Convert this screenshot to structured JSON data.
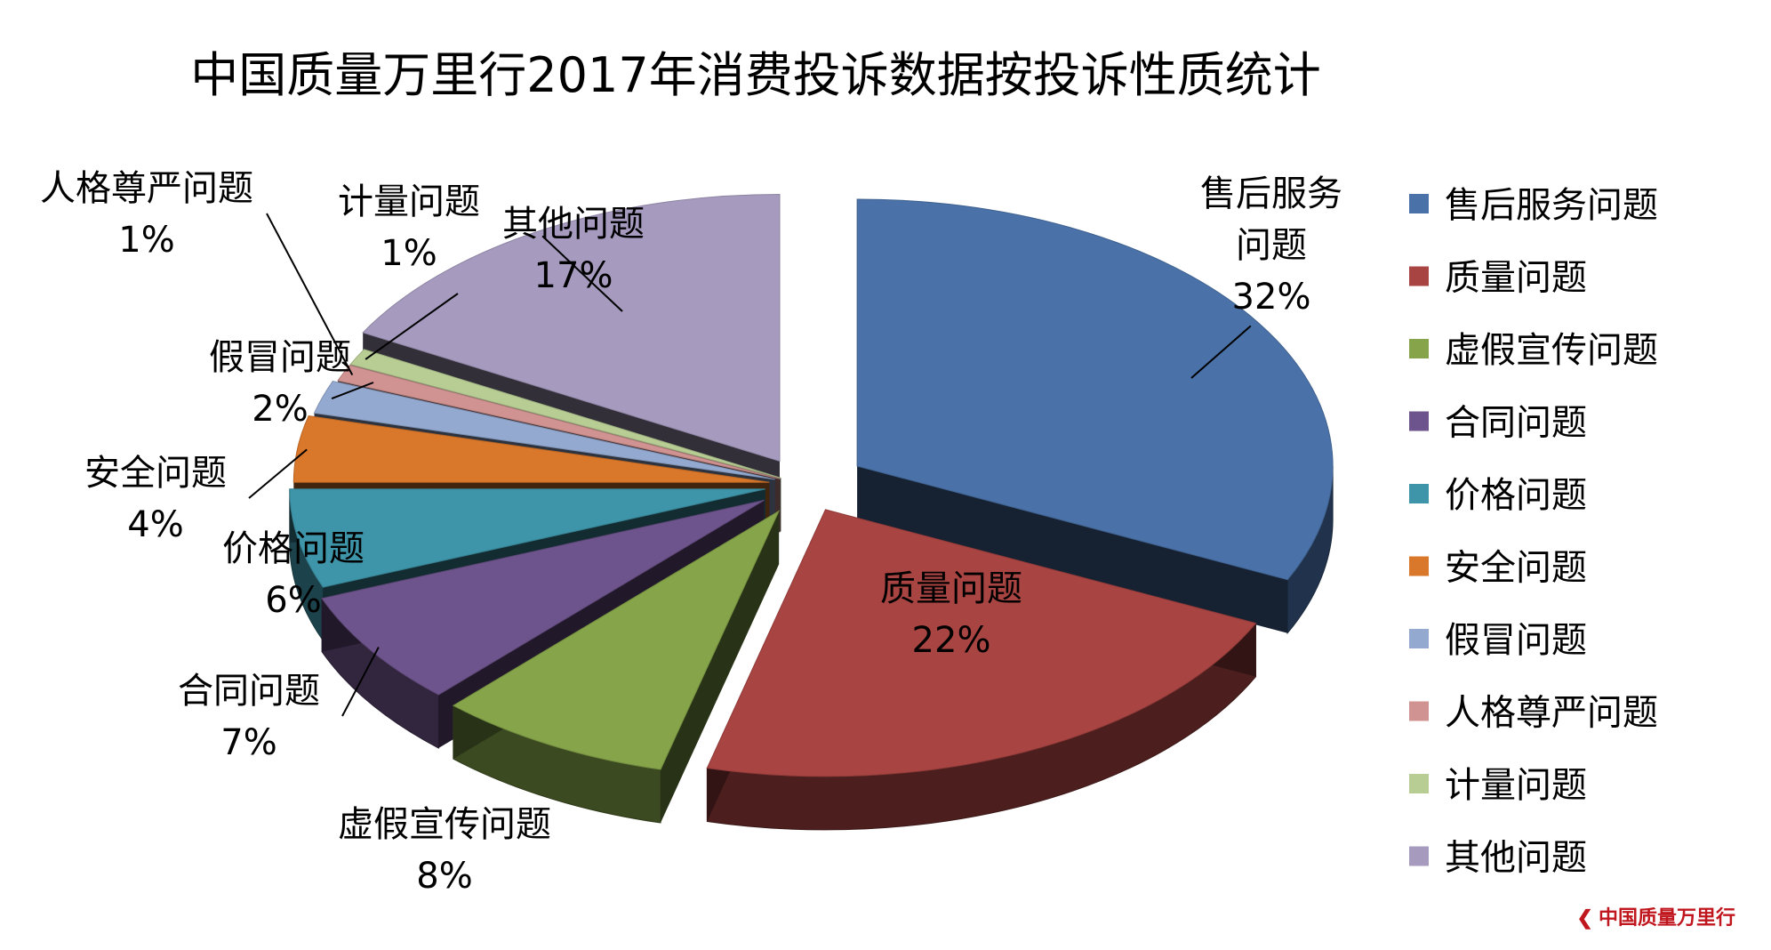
{
  "title": "中国质量万里行2017年消费投诉数据按投诉性质统计",
  "watermark": "中国质量万里行",
  "chart_data": {
    "type": "pie",
    "title": "中国质量万里行2017年消费投诉数据按投诉性质统计",
    "style": "3d-exploded",
    "legend_position": "right",
    "slices": [
      {
        "name": "售后服务问题",
        "value": 32,
        "label": "32%",
        "callout": [
          "售后服务",
          "问题"
        ],
        "color": "#4a72a8"
      },
      {
        "name": "质量问题",
        "value": 22,
        "label": "22%",
        "callout": [
          "质量问题"
        ],
        "color": "#a84442"
      },
      {
        "name": "虚假宣传问题",
        "value": 8,
        "label": "8%",
        "callout": [
          "虚假宣传问题"
        ],
        "color": "#86a54a"
      },
      {
        "name": "合同问题",
        "value": 7,
        "label": "7%",
        "callout": [
          "合同问题"
        ],
        "color": "#6e548c"
      },
      {
        "name": "价格问题",
        "value": 6,
        "label": "6%",
        "callout": [
          "价格问题"
        ],
        "color": "#3e94a8"
      },
      {
        "name": "安全问题",
        "value": 4,
        "label": "4%",
        "callout": [
          "安全问题"
        ],
        "color": "#d9772a"
      },
      {
        "name": "假冒问题",
        "value": 2,
        "label": "2%",
        "callout": [
          "假冒问题"
        ],
        "color": "#93a9d0"
      },
      {
        "name": "人格尊严问题",
        "value": 1,
        "label": "1%",
        "callout": [
          "人格尊严问题"
        ],
        "color": "#d09392"
      },
      {
        "name": "计量问题",
        "value": 1,
        "label": "1%",
        "callout": [
          "计量问题"
        ],
        "color": "#b7cd94"
      },
      {
        "name": "其他问题",
        "value": 17,
        "label": "17%",
        "callout": [
          "其他问题"
        ],
        "color": "#a69bbf"
      }
    ]
  }
}
